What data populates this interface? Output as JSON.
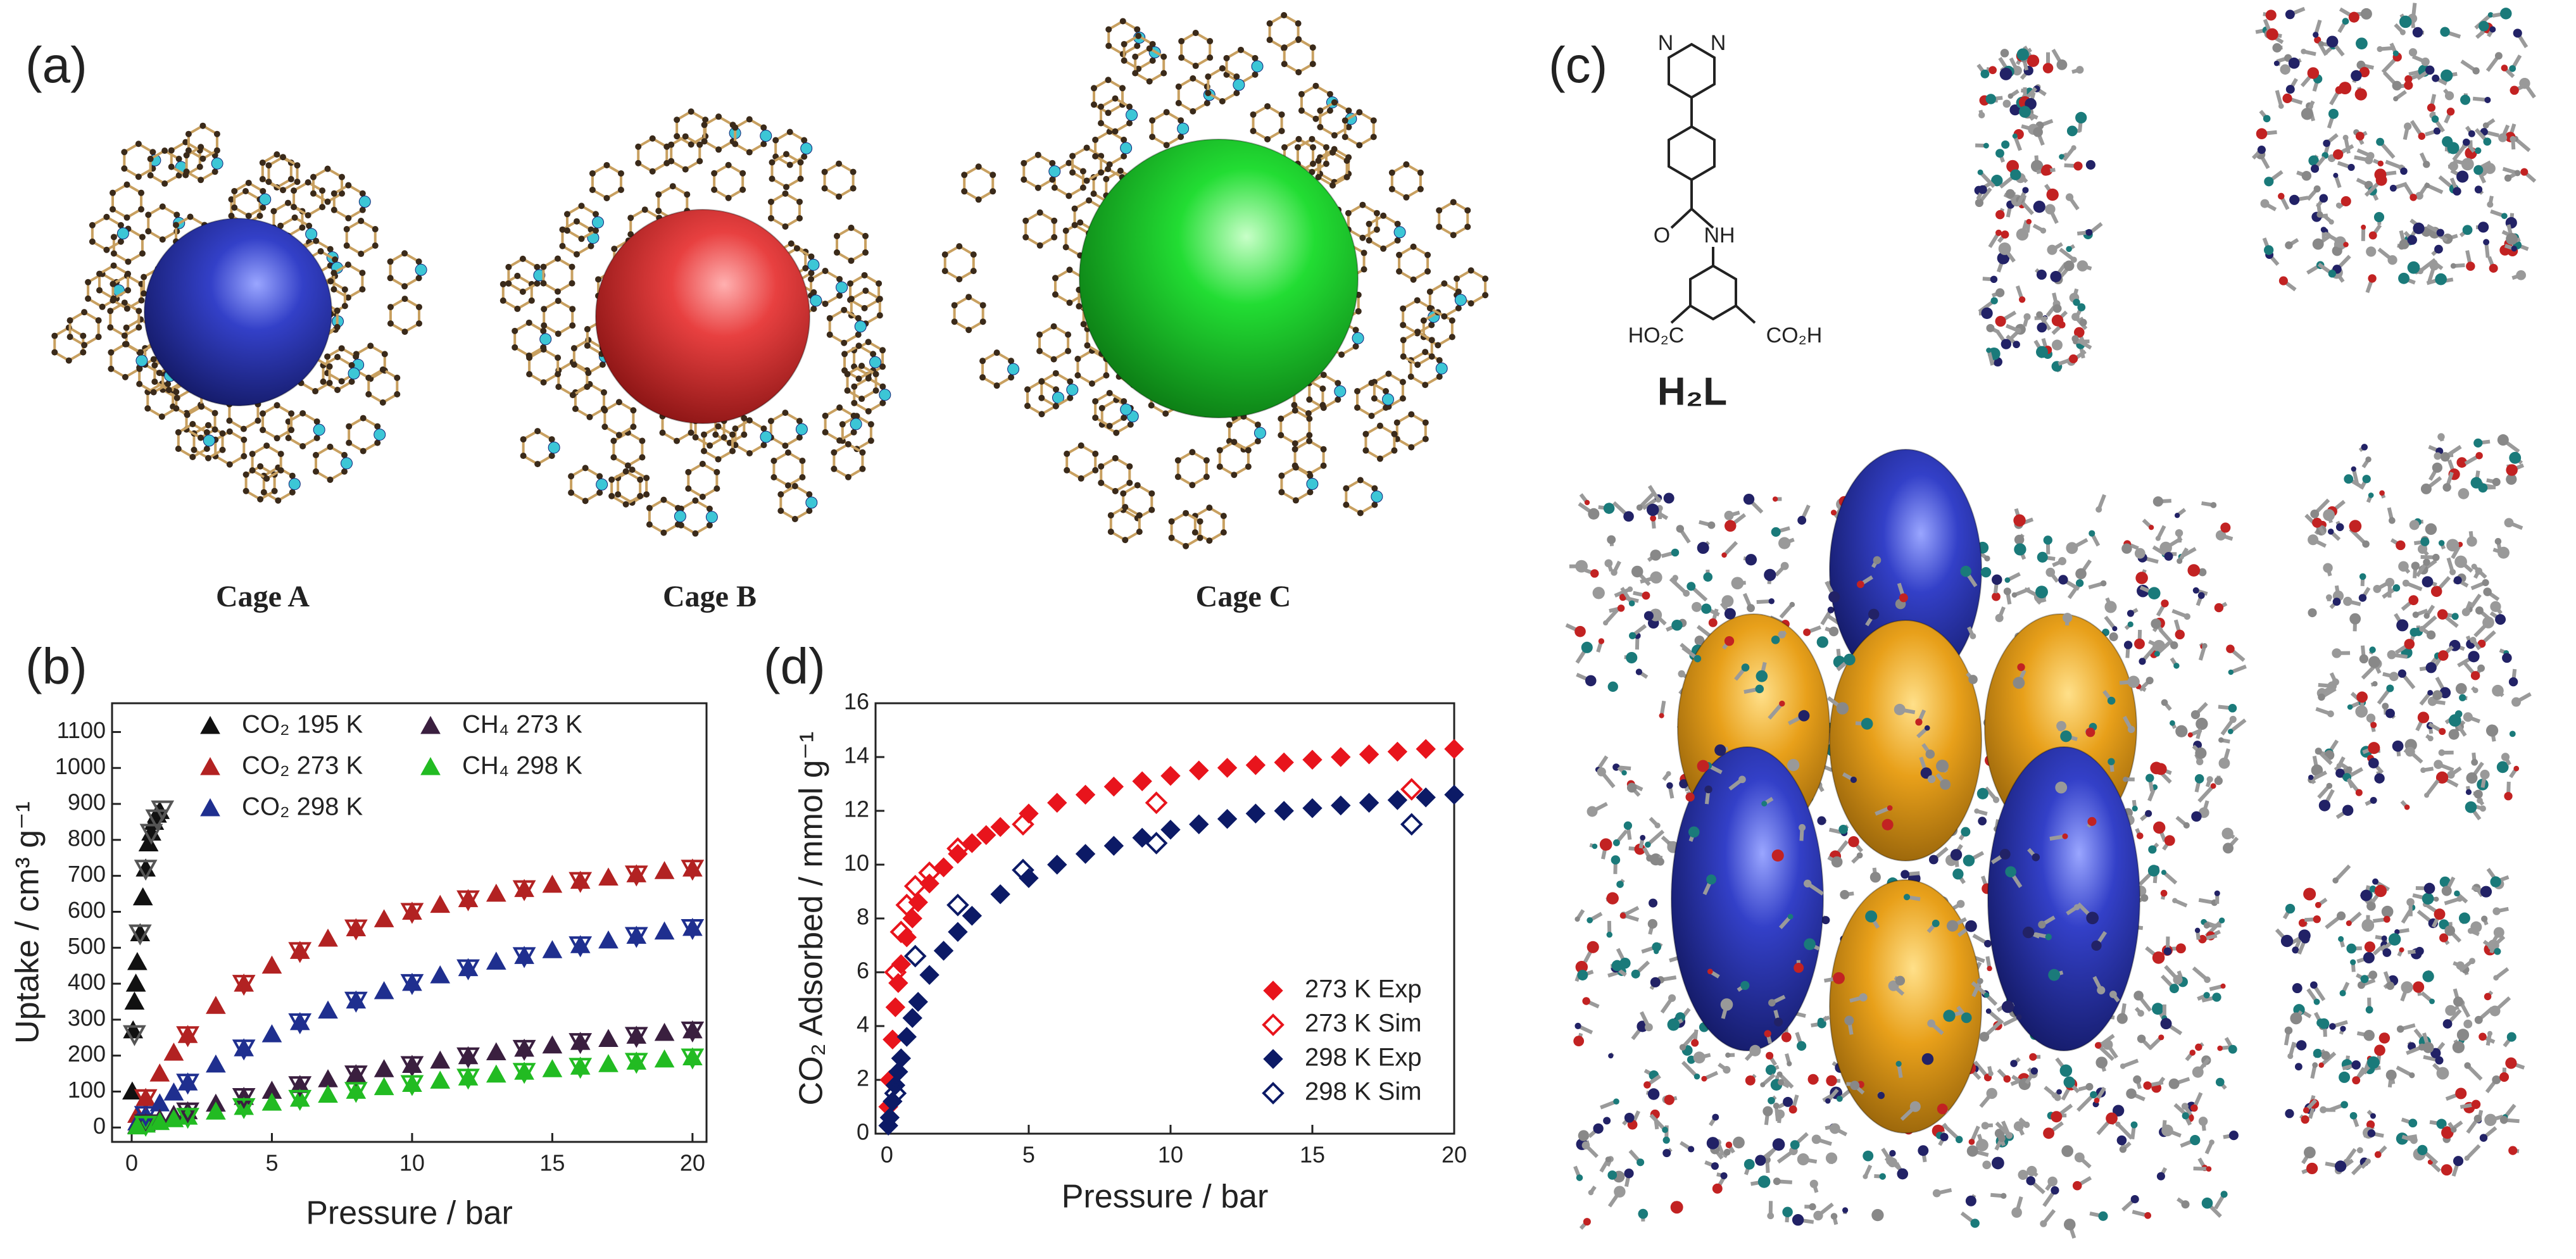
{
  "panel_labels": [
    "(a)",
    "(b)",
    "(c)",
    "(d)"
  ],
  "cage_labels": [
    "Cage A",
    "Cage B",
    "Cage C"
  ],
  "ligand": {
    "name": "H₂L",
    "atoms": [
      "N",
      "N",
      "O",
      "NH",
      "HO₂C",
      "CO₂H"
    ]
  },
  "chart_data": [
    {
      "type": "scatter",
      "xlabel": "Pressure / bar",
      "ylabel": "Uptake / cm³ g⁻¹",
      "xlim": [
        -0.7,
        20.5
      ],
      "ylim": [
        -40,
        1180
      ],
      "xticks": [
        0,
        5,
        10,
        15,
        20
      ],
      "yticks": [
        0,
        100,
        200,
        300,
        400,
        500,
        600,
        700,
        800,
        900,
        1000,
        1100
      ],
      "legend": "upper-left",
      "series": [
        {
          "name": "CO₂ 195 K",
          "color": "#111111",
          "marker": "triangle-up",
          "x": [
            0.02,
            0.05,
            0.1,
            0.15,
            0.2,
            0.3,
            0.4,
            0.5,
            0.6,
            0.7,
            0.8,
            0.9,
            1.0
          ],
          "values": [
            100,
            270,
            350,
            400,
            460,
            540,
            640,
            720,
            790,
            820,
            850,
            870,
            880
          ]
        },
        {
          "name": "CO₂ 273 K",
          "color": "#b22222",
          "marker": "triangle-up",
          "x": [
            0.2,
            0.5,
            1,
            1.5,
            2,
            3,
            4,
            5,
            6,
            7,
            8,
            9,
            10,
            11,
            12,
            13,
            14,
            15,
            16,
            17,
            18,
            19,
            20
          ],
          "values": [
            35,
            82,
            150,
            208,
            257,
            338,
            400,
            450,
            491,
            525,
            554,
            579,
            600,
            619,
            635,
            650,
            663,
            675,
            686,
            695,
            704,
            713,
            720
          ]
        },
        {
          "name": "CO₂ 298 K",
          "color": "#1f2f8f",
          "marker": "triangle-up",
          "x": [
            0.2,
            0.5,
            1,
            1.5,
            2,
            3,
            4,
            5,
            6,
            7,
            8,
            9,
            10,
            11,
            12,
            13,
            14,
            15,
            16,
            17,
            18,
            19,
            20
          ],
          "values": [
            14,
            35,
            67,
            97,
            125,
            175,
            220,
            259,
            293,
            325,
            353,
            379,
            402,
            423,
            443,
            461,
            477,
            493,
            507,
            520,
            533,
            545,
            555
          ]
        },
        {
          "name": "CH₄ 273 K",
          "color": "#3a1f3f",
          "marker": "triangle-up",
          "x": [
            0.2,
            0.5,
            1,
            1.5,
            2,
            3,
            4,
            5,
            6,
            7,
            8,
            9,
            10,
            11,
            12,
            13,
            14,
            15,
            16,
            17,
            18,
            19,
            20
          ],
          "values": [
            5,
            12,
            24,
            35,
            45,
            66,
            85,
            102,
            118,
            134,
            148,
            162,
            174,
            186,
            198,
            209,
            219,
            228,
            238,
            246,
            255,
            263,
            270
          ]
        },
        {
          "name": "CH₄ 298 K",
          "color": "#22bb22",
          "marker": "triangle-up",
          "x": [
            0.2,
            0.5,
            1,
            1.5,
            2,
            3,
            4,
            5,
            6,
            7,
            8,
            9,
            10,
            11,
            12,
            13,
            14,
            15,
            16,
            17,
            18,
            19,
            20
          ],
          "values": [
            3,
            8,
            15,
            23,
            30,
            44,
            57,
            69,
            80,
            91,
            102,
            112,
            121,
            130,
            139,
            147,
            155,
            162,
            169,
            176,
            183,
            189,
            195
          ]
        },
        {
          "color": "#555555",
          "marker": "triangle-down-open",
          "x": [
            0.1,
            0.3,
            0.5,
            0.7,
            0.9,
            1.1
          ],
          "values": [
            260,
            540,
            720,
            820,
            860,
            885
          ]
        },
        {
          "color": "#b22222",
          "marker": "triangle-down-open",
          "x": [
            0.5,
            2,
            4,
            6,
            8,
            10,
            12,
            14,
            16,
            18,
            20
          ],
          "values": [
            82,
            257,
            400,
            491,
            554,
            600,
            635,
            663,
            686,
            704,
            720
          ]
        },
        {
          "color": "#1f2f8f",
          "marker": "triangle-down-open",
          "x": [
            0.5,
            2,
            4,
            6,
            8,
            10,
            12,
            14,
            16,
            18,
            20
          ],
          "values": [
            35,
            125,
            220,
            293,
            353,
            402,
            443,
            477,
            507,
            533,
            555
          ]
        },
        {
          "color": "#3a1f3f",
          "marker": "triangle-down-open",
          "x": [
            0.5,
            2,
            4,
            6,
            8,
            10,
            12,
            14,
            16,
            18,
            20
          ],
          "values": [
            12,
            45,
            85,
            118,
            148,
            174,
            198,
            219,
            238,
            255,
            270
          ]
        },
        {
          "color": "#22bb22",
          "marker": "triangle-down-open",
          "x": [
            0.5,
            2,
            4,
            6,
            8,
            10,
            12,
            14,
            16,
            18,
            20
          ],
          "values": [
            8,
            30,
            57,
            80,
            102,
            121,
            139,
            155,
            169,
            183,
            195
          ]
        }
      ]
    },
    {
      "type": "scatter",
      "xlabel": "Pressure / bar",
      "ylabel": "CO₂ Adsorbed / mmol g⁻¹",
      "xlim": [
        -0.4,
        20
      ],
      "ylim": [
        0,
        16
      ],
      "xticks": [
        0,
        5,
        10,
        15,
        20
      ],
      "yticks": [
        0,
        2,
        4,
        6,
        8,
        10,
        12,
        14,
        16
      ],
      "legend": "lower-right",
      "series": [
        {
          "name": "273 K Exp",
          "color": "#e8141c",
          "marker": "diamond",
          "x": [
            0.05,
            0.1,
            0.2,
            0.3,
            0.4,
            0.5,
            0.7,
            0.9,
            1.1,
            1.5,
            2,
            2.5,
            3,
            3.5,
            4,
            5,
            6,
            7,
            8,
            9,
            10,
            11,
            12,
            13,
            14,
            15,
            16,
            17,
            18,
            19,
            20
          ],
          "values": [
            1.0,
            2.0,
            3.5,
            4.7,
            5.6,
            6.3,
            7.3,
            8.0,
            8.6,
            9.3,
            9.9,
            10.4,
            10.8,
            11.1,
            11.4,
            11.9,
            12.3,
            12.6,
            12.9,
            13.1,
            13.3,
            13.5,
            13.6,
            13.7,
            13.8,
            13.9,
            14.0,
            14.1,
            14.2,
            14.3,
            14.3
          ]
        },
        {
          "name": "273 K Sim",
          "color": "#e8141c",
          "marker": "diamond-open",
          "x": [
            0.3,
            0.5,
            0.7,
            1,
            1.5,
            2.5,
            4.8,
            9.5,
            18.5
          ],
          "values": [
            6.0,
            7.5,
            8.5,
            9.2,
            9.7,
            10.6,
            11.5,
            12.3,
            12.8
          ]
        },
        {
          "name": "298 K Exp",
          "color": "#0c1a66",
          "marker": "diamond",
          "x": [
            0.05,
            0.1,
            0.2,
            0.3,
            0.4,
            0.5,
            0.7,
            0.9,
            1.1,
            1.5,
            2,
            2.5,
            3,
            4,
            5,
            6,
            7,
            8,
            9,
            10,
            11,
            12,
            13,
            14,
            15,
            16,
            17,
            18,
            19,
            20
          ],
          "values": [
            0.3,
            0.6,
            1.2,
            1.8,
            2.3,
            2.8,
            3.6,
            4.3,
            4.9,
            5.9,
            6.8,
            7.5,
            8.1,
            8.9,
            9.5,
            10.0,
            10.4,
            10.7,
            11.0,
            11.3,
            11.5,
            11.7,
            11.9,
            12.0,
            12.1,
            12.2,
            12.3,
            12.4,
            12.5,
            12.6
          ]
        },
        {
          "name": "298 K Sim",
          "color": "#0c1a66",
          "marker": "diamond-open",
          "x": [
            0.3,
            1,
            2.5,
            4.8,
            9.5,
            18.5
          ],
          "values": [
            1.5,
            6.6,
            8.5,
            9.8,
            10.8,
            11.5
          ]
        }
      ]
    }
  ]
}
